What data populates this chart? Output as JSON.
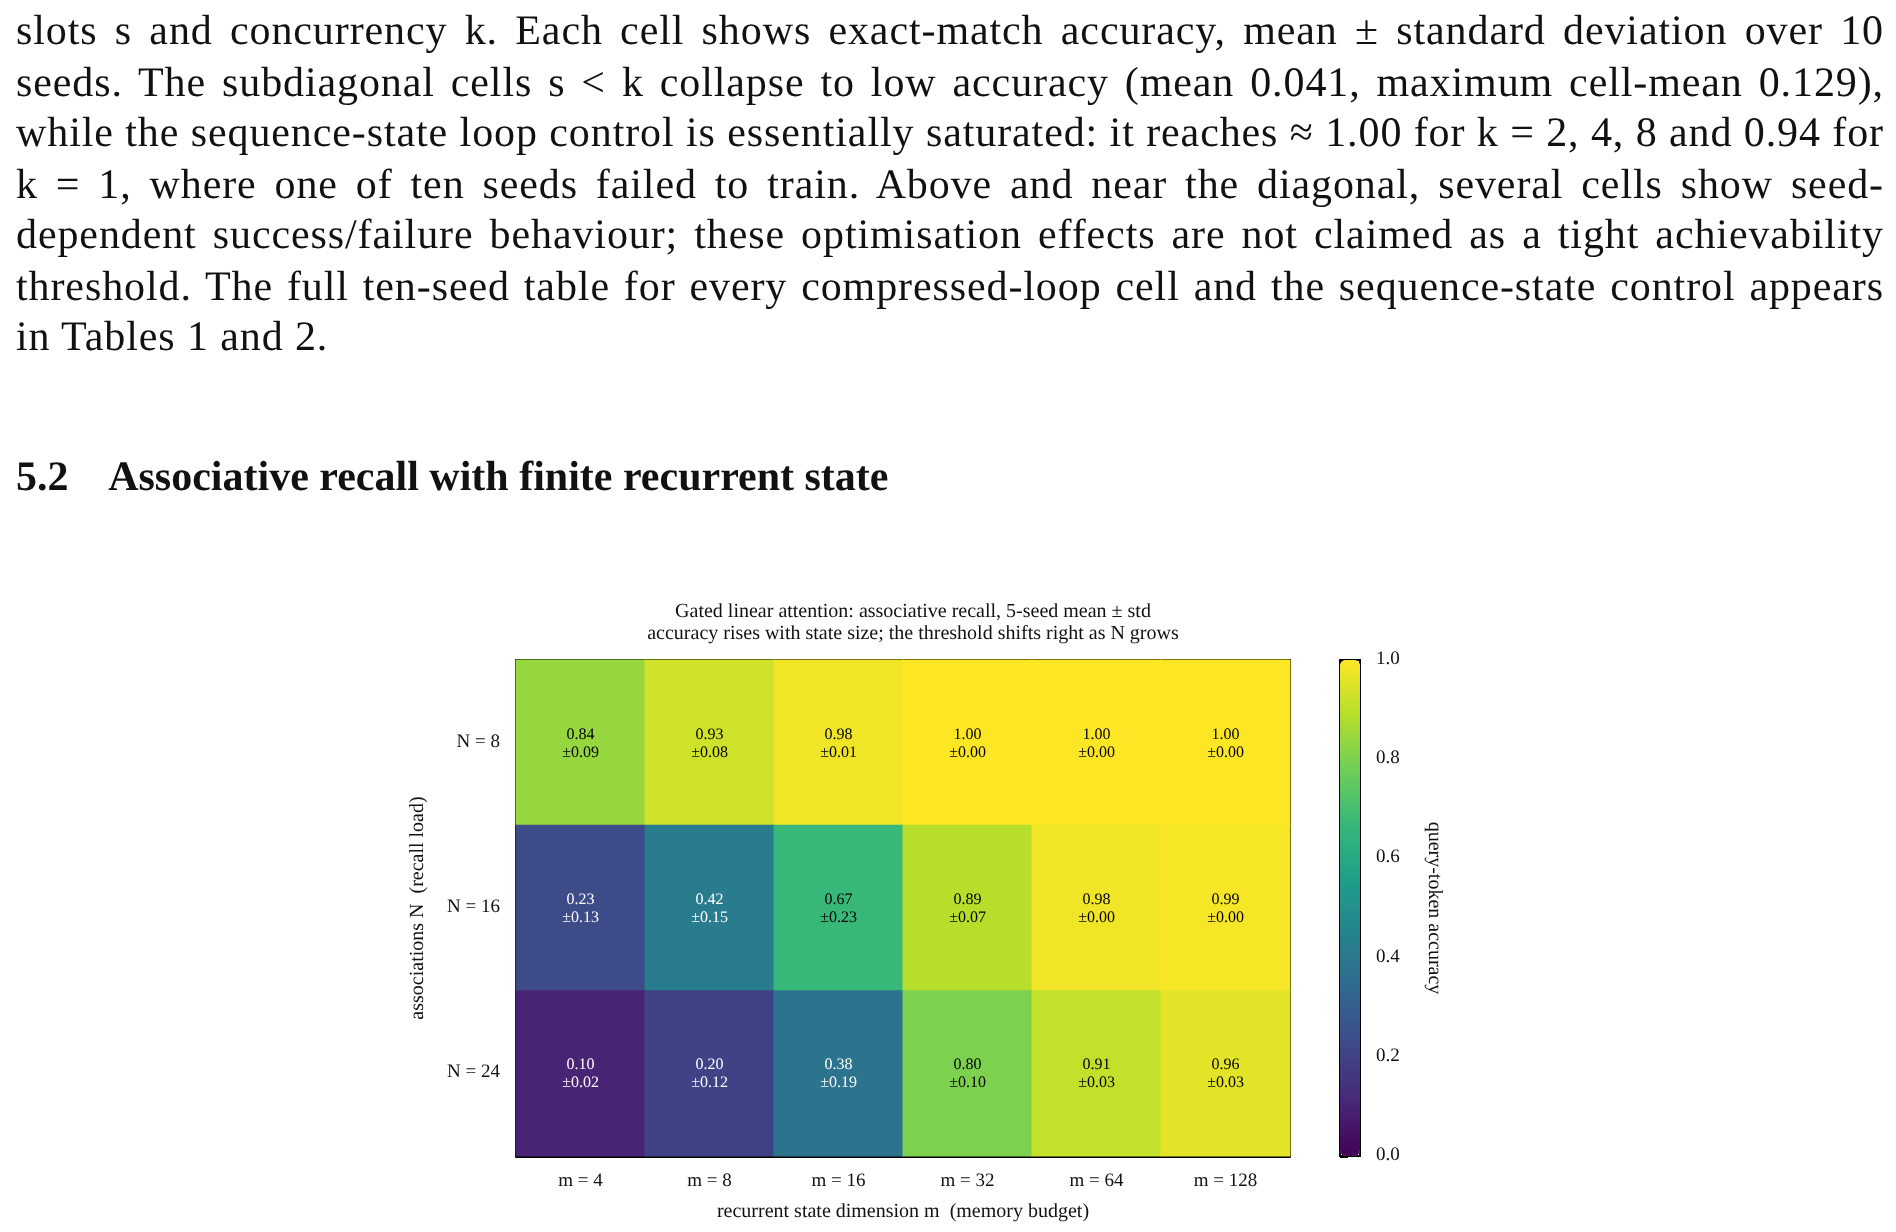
{
  "chart_data": {
    "type": "heatmap",
    "title": "Gated linear attention: associative recall, 5-seed mean ± std",
    "subtitle": "accuracy rises with state size; the threshold shifts right as N grows",
    "xlabel": "recurrent state dimension m  (memory budget)",
    "ylabel": "associations N  (recall load)",
    "clabel": "query-token accuracy",
    "annotations": [
      "slots s and concurrency k. Each cell shows exact-match accuracy, mean ± standard deviation over 10 seeds. The subdiagonal cells s < k collapse to low accuracy (mean 0.041, maximum cell-mean 0.129), while the sequence-state loop control is essentially saturated: it reaches ≈ 1.00 for k = 2, 4, 8 and 0.94 for k = 1, where one of ten seeds failed to train. Above and near the diagonal, several cells show seed-dependent success/failure behaviour; these optimisation effects are not claimed as a tight achievability threshold. The full ten-seed table for every compressed-loop cell and the sequence-state control appears in Tables 1 and 2.",
      "5.2    Associative recall with finite recurrent state"
    ],
    "categories": [
      "m = 4",
      "m = 8",
      "m = 16",
      "m = 32",
      "m = 64",
      "m = 128"
    ],
    "y_categories": [
      "N = 8",
      "N = 16",
      "N = 24"
    ],
    "cells": [
      [
        0.84,
        0.93,
        0.98,
        1.0,
        1.0,
        1.0
      ],
      [
        0.23,
        0.42,
        0.67,
        0.89,
        0.98,
        0.99
      ],
      [
        0.1,
        0.2,
        0.38,
        0.8,
        0.91,
        0.96
      ]
    ],
    "cell_labels": [
      [
        "0.84\n±0.09",
        "0.93\n±0.08",
        "0.98\n±0.01",
        "1.00\n±0.00",
        "1.00\n±0.00",
        "1.00\n±0.00"
      ],
      [
        "0.23\n±0.13",
        "0.42\n±0.15",
        "0.67\n±0.23",
        "0.89\n±0.07",
        "0.98\n±0.00",
        "0.99\n±0.00"
      ],
      [
        "0.10\n±0.02",
        "0.20\n±0.12",
        "0.38\n±0.19",
        "0.80\n±0.10",
        "0.91\n±0.03",
        "0.96\n±0.03"
      ]
    ],
    "clim": [
      0.0,
      1.0
    ],
    "cticks": [
      {
        "value": 0,
        "label": "0.0"
      },
      {
        "value": 0.2,
        "label": "0.2"
      },
      {
        "value": 0.4,
        "label": "0.4"
      },
      {
        "value": 0.6,
        "label": "0.6"
      },
      {
        "value": 0.8,
        "label": "0.8"
      },
      {
        "value": 1,
        "label": "1.0"
      }
    ]
  }
}
